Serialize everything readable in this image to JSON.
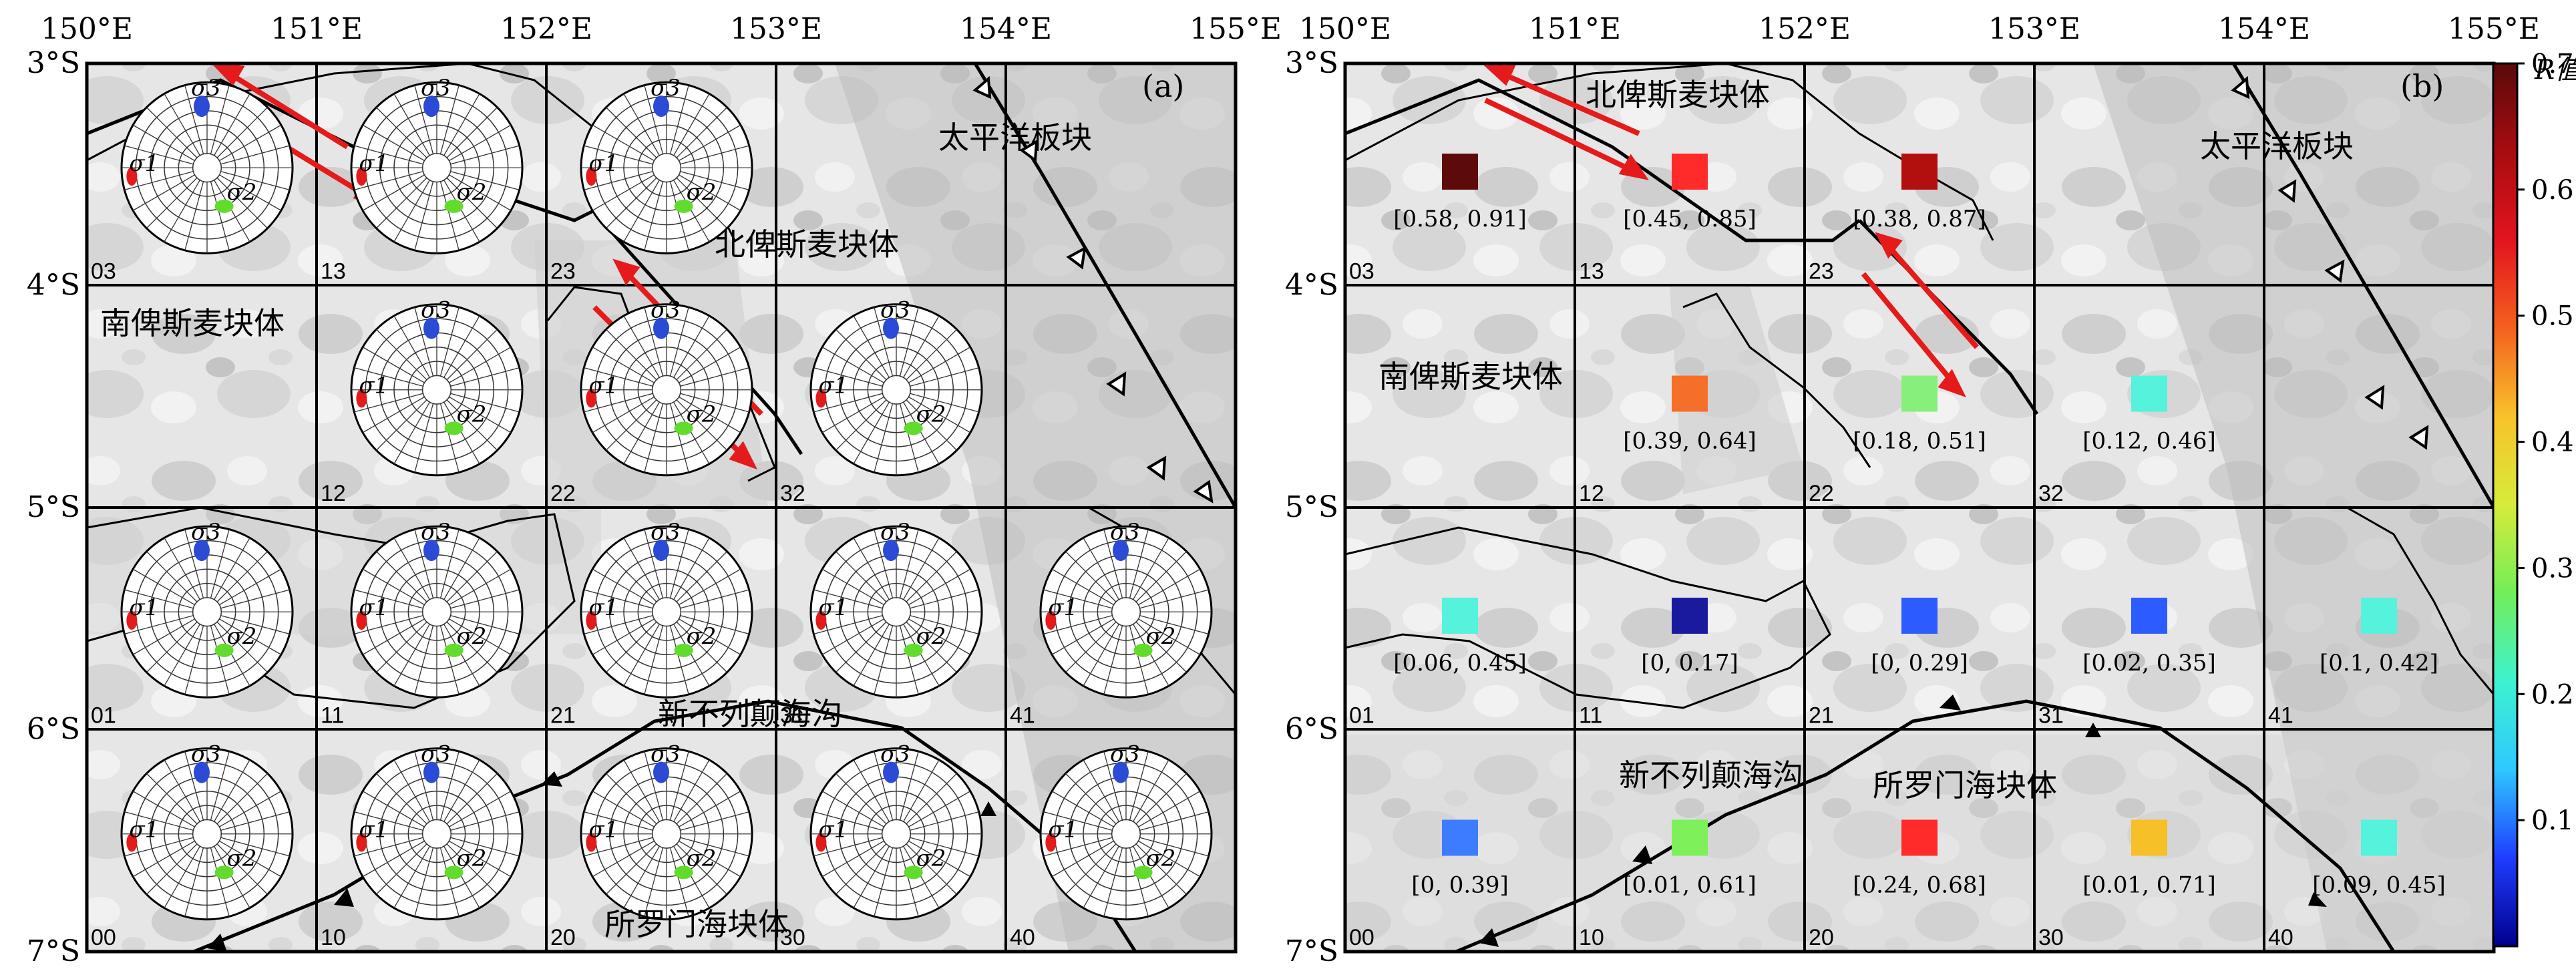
{
  "longitude_labels": [
    "150°E",
    "151°E",
    "152°E",
    "153°E",
    "154°E",
    "155°E"
  ],
  "latitude_labels": [
    "3°S",
    "4°S",
    "5°S",
    "6°S",
    "7°S"
  ],
  "panel_a": {
    "label": "(a)",
    "region_labels": {
      "pacific": "太平洋板块",
      "north_bismarck": "北俾斯麦块体",
      "south_bismarck": "南俾斯麦块体",
      "trench": "新不列颠海沟",
      "solomon": "所罗门海块体"
    },
    "sigma_labels": [
      "σ1",
      "σ2",
      "σ3"
    ],
    "stereonets": [
      {
        "cell": "03",
        "row": 0,
        "col": 0
      },
      {
        "cell": "13",
        "row": 0,
        "col": 1
      },
      {
        "cell": "23",
        "row": 0,
        "col": 2
      },
      {
        "cell": "12",
        "row": 1,
        "col": 1
      },
      {
        "cell": "22",
        "row": 1,
        "col": 2
      },
      {
        "cell": "32",
        "row": 1,
        "col": 3
      },
      {
        "cell": "01",
        "row": 2,
        "col": 0
      },
      {
        "cell": "11",
        "row": 2,
        "col": 1
      },
      {
        "cell": "21",
        "row": 2,
        "col": 2
      },
      {
        "cell": "31",
        "row": 2,
        "col": 3
      },
      {
        "cell": "41",
        "row": 2,
        "col": 4
      },
      {
        "cell": "00",
        "row": 3,
        "col": 0
      },
      {
        "cell": "10",
        "row": 3,
        "col": 1
      },
      {
        "cell": "20",
        "row": 3,
        "col": 2
      },
      {
        "cell": "30",
        "row": 3,
        "col": 3
      },
      {
        "cell": "40",
        "row": 3,
        "col": 4
      }
    ]
  },
  "panel_b": {
    "label": "(b)",
    "region_labels": {
      "north_bismarck": "北俾斯麦块体",
      "pacific": "太平洋板块",
      "south_bismarck": "南俾斯麦块体",
      "trench": "新不列颠海沟",
      "solomon": "所罗门海块体"
    },
    "r_cells": [
      {
        "cell": "03",
        "row": 0,
        "col": 0,
        "color": "#5c0a0a",
        "range": "[0.58, 0.91]"
      },
      {
        "cell": "13",
        "row": 0,
        "col": 1,
        "color": "#ff2a2a",
        "range": "[0.45, 0.85]"
      },
      {
        "cell": "23",
        "row": 0,
        "col": 2,
        "color": "#b20f0f",
        "range": "[0.38, 0.87]"
      },
      {
        "cell": "12",
        "row": 1,
        "col": 1,
        "color": "#f56f2a",
        "range": "[0.39, 0.64]"
      },
      {
        "cell": "22",
        "row": 1,
        "col": 2,
        "color": "#86f07a",
        "range": "[0.18, 0.51]"
      },
      {
        "cell": "32",
        "row": 1,
        "col": 3,
        "color": "#55f2dc",
        "range": "[0.12, 0.46]"
      },
      {
        "cell": "01",
        "row": 2,
        "col": 0,
        "color": "#55f2dc",
        "range": "[0.06, 0.45]"
      },
      {
        "cell": "11",
        "row": 2,
        "col": 1,
        "color": "#1a1a9e",
        "range": "[0, 0.17]"
      },
      {
        "cell": "21",
        "row": 2,
        "col": 2,
        "color": "#2c5cff",
        "range": "[0, 0.29]"
      },
      {
        "cell": "31",
        "row": 2,
        "col": 3,
        "color": "#2c5cff",
        "range": "[0.02, 0.35]"
      },
      {
        "cell": "41",
        "row": 2,
        "col": 4,
        "color": "#55f2dc",
        "range": "[0.1, 0.42]"
      },
      {
        "cell": "00",
        "row": 3,
        "col": 0,
        "color": "#3d7cff",
        "range": "[0, 0.39]"
      },
      {
        "cell": "10",
        "row": 3,
        "col": 1,
        "color": "#7df05a",
        "range": "[0.01, 0.61]"
      },
      {
        "cell": "20",
        "row": 3,
        "col": 2,
        "color": "#ff2a2a",
        "range": "[0.24, 0.68]"
      },
      {
        "cell": "30",
        "row": 3,
        "col": 3,
        "color": "#f5c028",
        "range": "[0.01, 0.71]"
      },
      {
        "cell": "40",
        "row": 3,
        "col": 4,
        "color": "#55f2dc",
        "range": "[0.09, 0.45]"
      }
    ]
  },
  "colorbar": {
    "title": "R值",
    "ticks": [
      "0.1",
      "0.2",
      "0.3",
      "0.4",
      "0.5",
      "0.6",
      "0.7"
    ],
    "stops": [
      "#00008c",
      "#1f3dff",
      "#2ec8ff",
      "#3df2d0",
      "#72ee58",
      "#d6ec3a",
      "#f8c22a",
      "#f4611f",
      "#e3141e",
      "#a80c10",
      "#5a0a0a"
    ]
  },
  "colors": {
    "fault": "#000000",
    "arrow": "#e51b1b",
    "sigma1": "#e51b1b",
    "sigma2": "#62dc2c",
    "sigma3": "#2b4bd6"
  }
}
